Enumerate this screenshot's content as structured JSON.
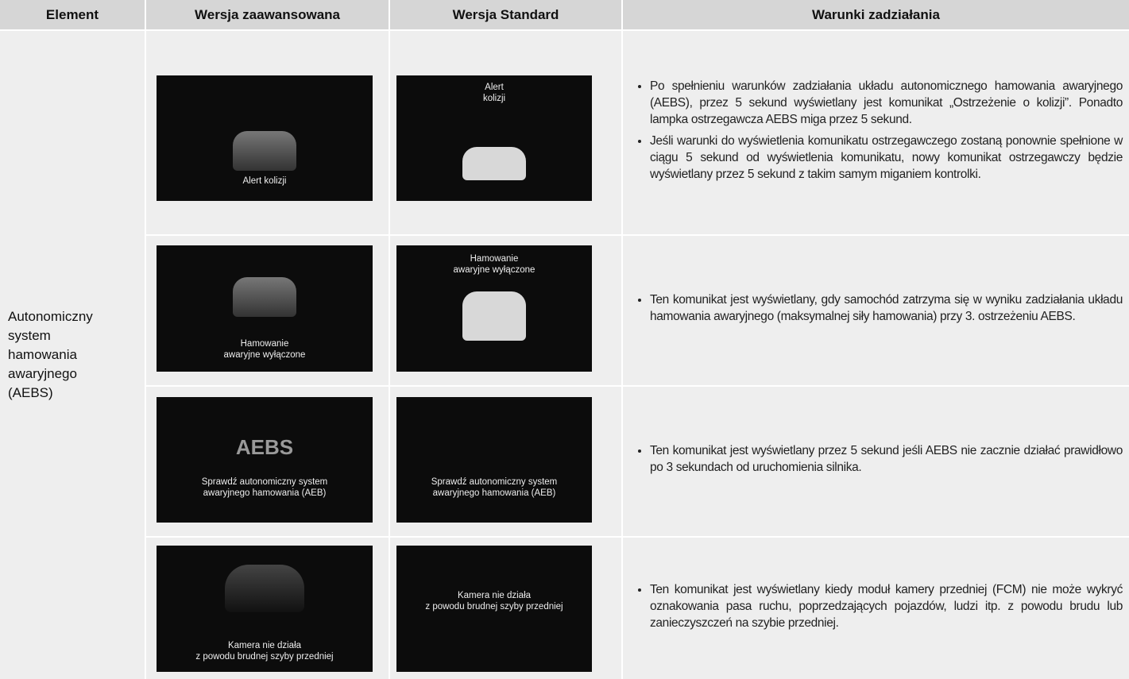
{
  "header": {
    "columns": [
      "Element",
      "Wersja zaawansowana",
      "Wersja Standard",
      "Warunki zadziałania"
    ]
  },
  "element": "Autonomiczny\nsystem\nhamowania\nawaryjnego\n(AEBS)",
  "rows": [
    {
      "advanced": {
        "caption": "Alert kolizji"
      },
      "standard": {
        "caption": "Alert\nkolizji"
      },
      "conditions": [
        "Po spełnieniu warunków zadziałania układu autonomicznego hamowania awaryjnego (AEBS), przez 5 sekund wyświetlany jest komunikat „Ostrzeżenie o kolizji”. Ponadto lampka ostrzegawcza AEBS miga przez 5 sekund.",
        "Jeśli warunki do wyświetlenia komunikatu ostrzegawczego zostaną ponownie spełnione w ciągu 5 sekund od wyświetlenia komunikatu, nowy komunikat ostrzegawczy będzie wyświetlany przez 5 sekund z takim samym miganiem kontrolki."
      ]
    },
    {
      "advanced": {
        "caption": "Hamowanie\nawaryjne wyłączone"
      },
      "standard": {
        "caption": "Hamowanie\nawaryjne wyłączone"
      },
      "conditions": [
        "Ten komunikat jest wyświetlany, gdy samochód zatrzyma się w wyniku zadziałania układu hamowania awaryjnego (maksymalnej siły hamowania) przy 3. ostrzeżeniu AEBS."
      ]
    },
    {
      "advanced": {
        "label": "AEBS",
        "caption": "Sprawdź autonomiczny system\nawaryjnego hamowania (AEB)"
      },
      "standard": {
        "caption": "Sprawdź autonomiczny system\nawaryjnego hamowania (AEB)"
      },
      "conditions": [
        "Ten komunikat jest wyświetlany przez 5 sekund jeśli AEBS nie zacznie działać prawidłowo po 3 sekundach od uruchomienia silnika."
      ]
    },
    {
      "advanced": {
        "caption": "Kamera nie działa\nz powodu brudnej szyby przedniej"
      },
      "standard": {
        "caption": "Kamera nie działa\nz powodu brudnej szyby przedniej"
      },
      "conditions": [
        "Ten komunikat jest wyświetlany kiedy moduł kamery przedniej (FCM) nie może wykryć oznakowania pasa ruchu, poprzedzających pojazdów, ludzi itp. z powodu brudu lub zanieczyszczeń na szybie przedniej."
      ]
    }
  ]
}
